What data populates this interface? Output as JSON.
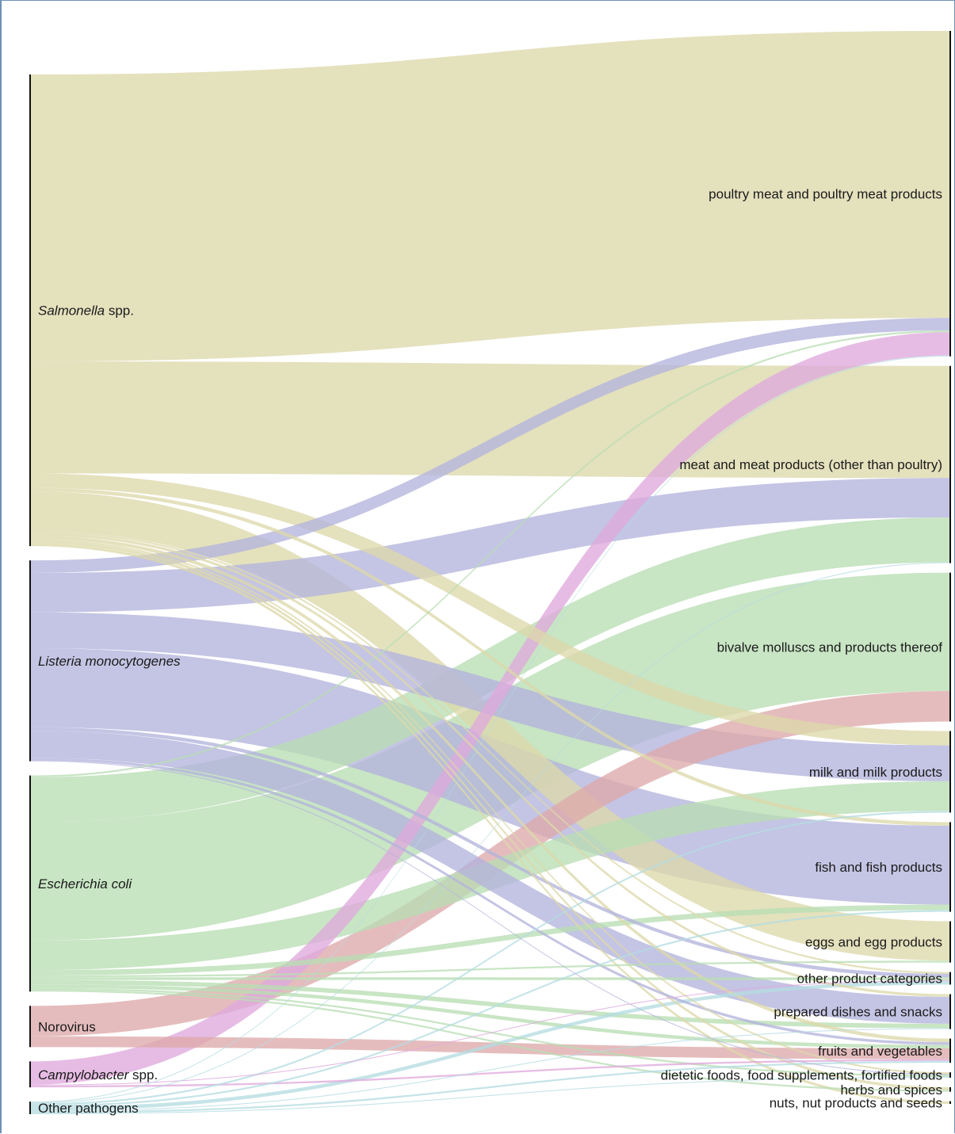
{
  "sources": [
    {
      "id": "salmonella",
      "name_italic": "Salmonella",
      "name_rest": " spp.",
      "color": "#dcd9aa"
    },
    {
      "id": "listeria",
      "name_italic": "Listeria monocytogenes",
      "name_rest": "",
      "color": "#b3b3dd"
    },
    {
      "id": "ecoli",
      "name_italic": "Escherichia coli",
      "name_rest": "",
      "color": "#b9deb4"
    },
    {
      "id": "norovirus",
      "name_italic": "",
      "name_rest": "Norovirus",
      "color": "#dea9ab"
    },
    {
      "id": "campylobacter",
      "name_italic": "Campylobacter",
      "name_rest": " spp.",
      "color": "#dfa9dc"
    },
    {
      "id": "other_pathogens",
      "name_italic": "",
      "name_rest": "Other pathogens",
      "color": "#b5dde2"
    }
  ],
  "targets": [
    {
      "id": "poultry",
      "name": "poultry meat and poultry meat products"
    },
    {
      "id": "meat",
      "name": "meat and meat products (other than poultry)"
    },
    {
      "id": "bivalve",
      "name": "bivalve molluscs and products thereof"
    },
    {
      "id": "milk",
      "name": "milk and milk products"
    },
    {
      "id": "fish",
      "name": "fish and fish products"
    },
    {
      "id": "eggs",
      "name": "eggs and egg products"
    },
    {
      "id": "other_cat",
      "name": "other product categories"
    },
    {
      "id": "prepared",
      "name": "prepared dishes and snacks"
    },
    {
      "id": "fruits",
      "name": "fruits and vegetables"
    },
    {
      "id": "dietetic",
      "name": "dietetic foods, food supplements, fortified foods"
    },
    {
      "id": "herbs",
      "name": "herbs and spices"
    },
    {
      "id": "nuts",
      "name": "nuts, nut products and seeds"
    }
  ],
  "links": [
    {
      "source": "salmonella",
      "target": "poultry",
      "value": 320
    },
    {
      "source": "salmonella",
      "target": "meat",
      "value": 125
    },
    {
      "source": "salmonella",
      "target": "milk",
      "value": 16
    },
    {
      "source": "salmonella",
      "target": "fish",
      "value": 4
    },
    {
      "source": "salmonella",
      "target": "eggs",
      "value": 44
    },
    {
      "source": "salmonella",
      "target": "other_cat",
      "value": 2
    },
    {
      "source": "salmonella",
      "target": "prepared",
      "value": 3
    },
    {
      "source": "salmonella",
      "target": "fruits",
      "value": 4
    },
    {
      "source": "salmonella",
      "target": "dietetic",
      "value": 2
    },
    {
      "source": "salmonella",
      "target": "herbs",
      "value": 3
    },
    {
      "source": "salmonella",
      "target": "nuts",
      "value": 3
    },
    {
      "source": "listeria",
      "target": "poultry",
      "value": 14
    },
    {
      "source": "listeria",
      "target": "meat",
      "value": 44
    },
    {
      "source": "listeria",
      "target": "milk",
      "value": 40
    },
    {
      "source": "listeria",
      "target": "fish",
      "value": 88
    },
    {
      "source": "listeria",
      "target": "other_cat",
      "value": 4
    },
    {
      "source": "listeria",
      "target": "prepared",
      "value": 30
    },
    {
      "source": "listeria",
      "target": "fruits",
      "value": 3
    },
    {
      "source": "listeria",
      "target": "dietetic",
      "value": 1
    },
    {
      "source": "ecoli",
      "target": "poultry",
      "value": 2
    },
    {
      "source": "ecoli",
      "target": "meat",
      "value": 50
    },
    {
      "source": "ecoli",
      "target": "bivalve",
      "value": 132
    },
    {
      "source": "ecoli",
      "target": "milk",
      "value": 33
    },
    {
      "source": "ecoli",
      "target": "fish",
      "value": 6
    },
    {
      "source": "ecoli",
      "target": "eggs",
      "value": 2
    },
    {
      "source": "ecoli",
      "target": "other_cat",
      "value": 3
    },
    {
      "source": "ecoli",
      "target": "prepared",
      "value": 5
    },
    {
      "source": "ecoli",
      "target": "fruits",
      "value": 4
    },
    {
      "source": "ecoli",
      "target": "dietetic",
      "value": 2
    },
    {
      "source": "ecoli",
      "target": "herbs",
      "value": 2
    },
    {
      "source": "norovirus",
      "target": "bivalve",
      "value": 34
    },
    {
      "source": "norovirus",
      "target": "fruits",
      "value": 12
    },
    {
      "source": "campylobacter",
      "target": "poultry",
      "value": 26
    },
    {
      "source": "campylobacter",
      "target": "other_cat",
      "value": 1
    },
    {
      "source": "campylobacter",
      "target": "fruits",
      "value": 2
    },
    {
      "source": "other_pathogens",
      "target": "poultry",
      "value": 1
    },
    {
      "source": "other_pathogens",
      "target": "meat",
      "value": 1
    },
    {
      "source": "other_pathogens",
      "target": "milk",
      "value": 2
    },
    {
      "source": "other_pathogens",
      "target": "fish",
      "value": 2
    },
    {
      "source": "other_pathogens",
      "target": "other_cat",
      "value": 4
    },
    {
      "source": "other_pathogens",
      "target": "prepared",
      "value": 1
    },
    {
      "source": "other_pathogens",
      "target": "fruits",
      "value": 2
    },
    {
      "source": "other_pathogens",
      "target": "dietetic",
      "value": 1
    }
  ]
}
